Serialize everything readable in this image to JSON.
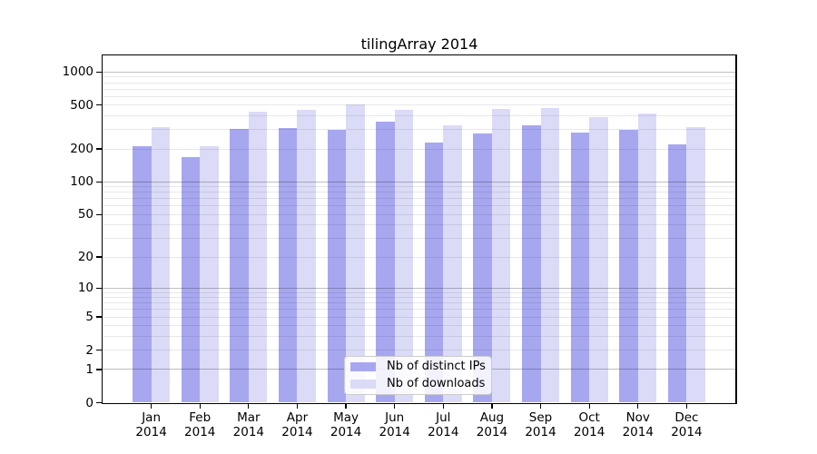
{
  "title": "tilingArray 2014",
  "colors": {
    "background": "#ffffff",
    "bar_distinct_ips": "#a7a7f0",
    "bar_downloads": "#dbdbf7",
    "axis": "#000000",
    "grid_major": "rgba(0,0,0,0.25)",
    "grid_minor": "rgba(0,0,0,0.09)",
    "legend_background": "rgba(255,255,255,0.85)",
    "legend_border": "#cccccc",
    "text": "#000000"
  },
  "legend": {
    "items": [
      {
        "label": "Nb of distinct IPs",
        "swatch": "bar_distinct_ips"
      },
      {
        "label": "Nb of downloads",
        "swatch": "bar_downloads"
      }
    ]
  },
  "chart_data": {
    "type": "bar",
    "title": "tilingArray 2014",
    "categories": [
      "Jan 2014",
      "Feb 2014",
      "Mar 2014",
      "Apr 2014",
      "May 2014",
      "Jun 2014",
      "Jul 2014",
      "Aug 2014",
      "Sep 2014",
      "Oct 2014",
      "Nov 2014",
      "Dec 2014"
    ],
    "series": [
      {
        "name": "Nb of distinct IPs",
        "values": [
          213,
          168,
          303,
          308,
          300,
          352,
          227,
          278,
          330,
          280,
          297,
          221
        ]
      },
      {
        "name": "Nb of downloads",
        "values": [
          316,
          212,
          437,
          456,
          506,
          454,
          329,
          465,
          474,
          392,
          423,
          316
        ]
      }
    ],
    "xlabel": "",
    "ylabel": "",
    "y_scale": "log1p",
    "y_ticks_labeled": [
      0,
      1,
      2,
      5,
      10,
      20,
      50,
      100,
      200,
      500,
      1000
    ],
    "y_grid_major": [
      1,
      10,
      100,
      1000
    ],
    "ylim": [
      0,
      1418
    ],
    "grid": true,
    "legend_position": "lower-center-inside"
  }
}
